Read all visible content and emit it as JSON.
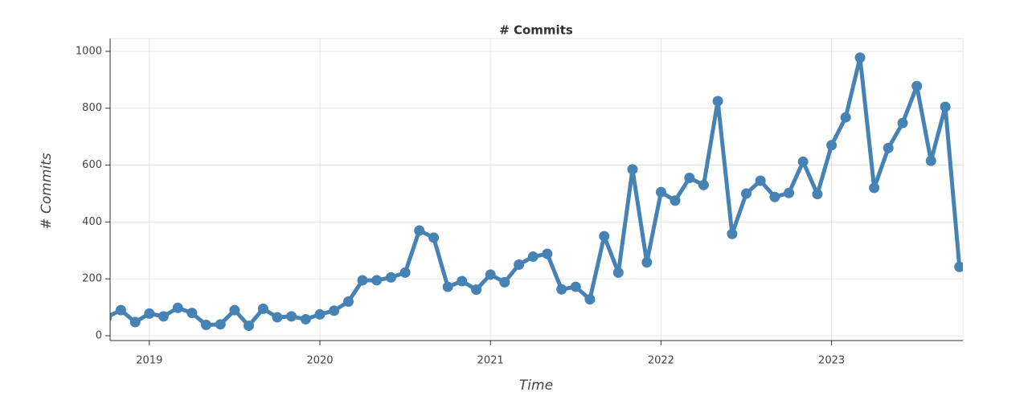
{
  "chart_data": {
    "type": "line",
    "title": "# Commits",
    "x_label": "Time",
    "y_label": "# Commits",
    "x": [
      2018.75,
      2018.833,
      2018.917,
      2019.0,
      2019.083,
      2019.167,
      2019.25,
      2019.333,
      2019.417,
      2019.5,
      2019.583,
      2019.667,
      2019.75,
      2019.833,
      2019.917,
      2020.0,
      2020.083,
      2020.167,
      2020.25,
      2020.333,
      2020.417,
      2020.5,
      2020.583,
      2020.667,
      2020.75,
      2020.833,
      2020.917,
      2021.0,
      2021.083,
      2021.167,
      2021.25,
      2021.333,
      2021.417,
      2021.5,
      2021.583,
      2021.667,
      2021.75,
      2021.833,
      2021.917,
      2022.0,
      2022.083,
      2022.167,
      2022.25,
      2022.333,
      2022.417,
      2022.5,
      2022.583,
      2022.667,
      2022.75,
      2022.833,
      2022.917,
      2023.0,
      2023.083,
      2023.167,
      2023.25,
      2023.333,
      2023.417,
      2023.5,
      2023.583,
      2023.667,
      2023.75
    ],
    "series": [
      {
        "name": "# Commits",
        "color": "#4682b4",
        "values": [
          65,
          90,
          48,
          78,
          68,
          98,
          80,
          38,
          40,
          90,
          35,
          95,
          65,
          68,
          58,
          75,
          88,
          120,
          195,
          195,
          205,
          222,
          370,
          345,
          172,
          192,
          162,
          215,
          188,
          250,
          278,
          288,
          163,
          172,
          128,
          350,
          222,
          585,
          258,
          505,
          475,
          555,
          530,
          825,
          358,
          500,
          545,
          488,
          502,
          612,
          498,
          670,
          768,
          978,
          520,
          660,
          748,
          878,
          615,
          805,
          242
        ]
      }
    ],
    "xlim": [
      2018.77,
      2023.77
    ],
    "xticks": [
      2019,
      2020,
      2021,
      2022,
      2023
    ],
    "ylim": [
      -17,
      1045
    ],
    "yticks": [
      0,
      200,
      400,
      600,
      800,
      1000
    ],
    "grid": true
  }
}
